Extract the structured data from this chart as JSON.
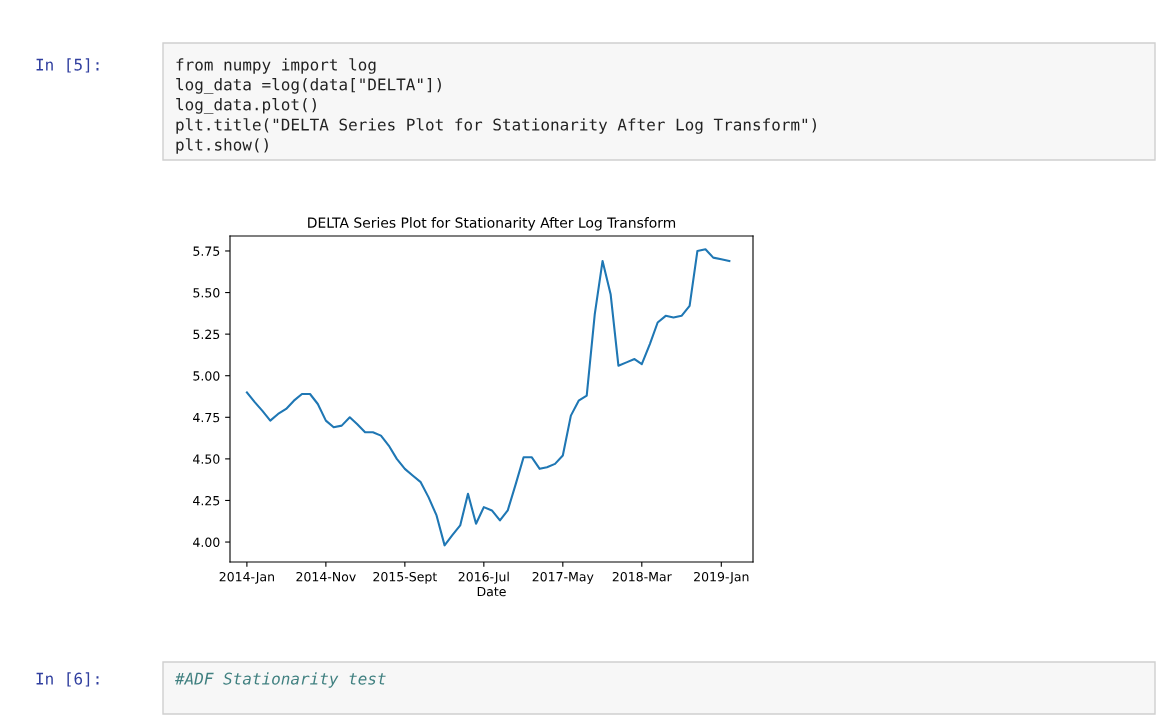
{
  "chart_data": {
    "type": "line",
    "title": "DELTA Series Plot for Stationarity After Log Transform",
    "xlabel": "Date",
    "x": [
      "2014-01",
      "2014-02",
      "2014-03",
      "2014-04",
      "2014-05",
      "2014-06",
      "2014-07",
      "2014-08",
      "2014-09",
      "2014-10",
      "2014-11",
      "2014-12",
      "2015-01",
      "2015-02",
      "2015-03",
      "2015-04",
      "2015-05",
      "2015-06",
      "2015-07",
      "2015-08",
      "2015-09",
      "2015-10",
      "2015-11",
      "2015-12",
      "2016-01",
      "2016-02",
      "2016-03",
      "2016-04",
      "2016-05",
      "2016-06",
      "2016-07",
      "2016-08",
      "2016-09",
      "2016-10",
      "2016-11",
      "2016-12",
      "2017-01",
      "2017-02",
      "2017-03",
      "2017-04",
      "2017-05",
      "2017-06",
      "2017-07",
      "2017-08",
      "2017-09",
      "2017-10",
      "2017-11",
      "2017-12",
      "2018-01",
      "2018-02",
      "2018-03",
      "2018-04",
      "2018-05",
      "2018-06",
      "2018-07",
      "2018-08",
      "2018-09",
      "2018-10",
      "2018-11",
      "2018-12",
      "2019-01",
      "2019-02"
    ],
    "series": [
      {
        "color": "#1f77b4",
        "values": [
          4.9,
          4.84,
          4.79,
          4.73,
          4.77,
          4.8,
          4.85,
          4.89,
          4.89,
          4.83,
          4.73,
          4.69,
          4.7,
          4.75,
          4.71,
          4.66,
          4.66,
          4.64,
          4.58,
          4.5,
          4.44,
          4.4,
          4.36,
          4.27,
          4.16,
          3.98,
          4.04,
          4.1,
          4.29,
          4.11,
          4.21,
          4.19,
          4.13,
          4.19,
          4.35,
          4.51,
          4.51,
          4.44,
          4.45,
          4.47,
          4.52,
          4.76,
          4.85,
          4.88,
          5.37,
          5.69,
          5.49,
          5.06,
          5.08,
          5.1,
          5.07,
          5.19,
          5.32,
          5.36,
          5.35,
          5.36,
          5.42,
          5.75,
          5.76,
          5.71,
          5.7,
          5.69
        ]
      }
    ],
    "xlim": [
      "2013-10-28",
      "2019-05-03"
    ],
    "xticks": [
      {
        "value": "2014-01",
        "label": "2014-Jan"
      },
      {
        "value": "2014-11",
        "label": "2014-Nov"
      },
      {
        "value": "2015-09",
        "label": "2015-Sept"
      },
      {
        "value": "2016-07",
        "label": "2016-Jul"
      },
      {
        "value": "2017-05",
        "label": "2017-May"
      },
      {
        "value": "2018-03",
        "label": "2018-Mar"
      },
      {
        "value": "2019-01",
        "label": "2019-Jan"
      }
    ],
    "ylim": [
      3.88,
      5.84
    ],
    "yticks": [
      {
        "value": 4.0,
        "label": "4.00"
      },
      {
        "value": 4.25,
        "label": "4.25"
      },
      {
        "value": 4.5,
        "label": "4.50"
      },
      {
        "value": 4.75,
        "label": "4.75"
      },
      {
        "value": 5.0,
        "label": "5.00"
      },
      {
        "value": 5.25,
        "label": "5.25"
      },
      {
        "value": 5.5,
        "label": "5.50"
      },
      {
        "value": 5.75,
        "label": "5.75"
      }
    ],
    "grid": false,
    "legend": false,
    "annotations": [
      "In [5]:",
      "from numpy import log",
      "log_data =log(data[\"DELTA\"])",
      "log_data.plot()",
      "plt.title(\"DELTA Series Plot for Stationarity After Log Transform\")",
      "plt.show()",
      "In [6]:",
      "#ADF Stationarity test"
    ]
  }
}
